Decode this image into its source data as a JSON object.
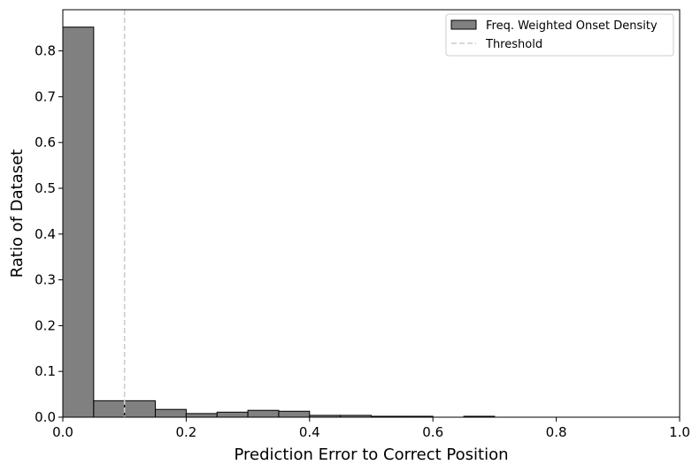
{
  "chart_data": {
    "type": "bar",
    "title": "",
    "xlabel": "Prediction Error to Correct Position",
    "ylabel": "Ratio of Dataset",
    "xlim": [
      0.0,
      1.0
    ],
    "ylim": [
      0.0,
      0.89
    ],
    "xticks": [
      "0.0",
      "0.2",
      "0.4",
      "0.6",
      "0.8",
      "1.0"
    ],
    "yticks": [
      "0.0",
      "0.1",
      "0.2",
      "0.3",
      "0.4",
      "0.5",
      "0.6",
      "0.7",
      "0.8"
    ],
    "grid": false,
    "legend_position": "top-right",
    "bin_width": 0.05,
    "bin_starts": [
      0.0,
      0.05,
      0.1,
      0.15,
      0.2,
      0.25,
      0.3,
      0.35,
      0.4,
      0.45,
      0.5,
      0.55,
      0.6,
      0.65,
      0.7,
      0.75,
      0.8,
      0.85,
      0.9,
      0.95
    ],
    "series": [
      {
        "name": "Freq. Weighted Onset Density",
        "color": "#808080",
        "edge_color": "#000000",
        "values": [
          0.852,
          0.036,
          0.036,
          0.017,
          0.008,
          0.011,
          0.015,
          0.013,
          0.004,
          0.004,
          0.002,
          0.002,
          0.0,
          0.002,
          0.0,
          0.0,
          0.0,
          0.0,
          0.0,
          0.0
        ]
      }
    ],
    "reference_lines": [
      {
        "name": "Threshold",
        "orientation": "vertical",
        "x": 0.1,
        "style": "dashed",
        "color": "#cccccc"
      }
    ]
  }
}
